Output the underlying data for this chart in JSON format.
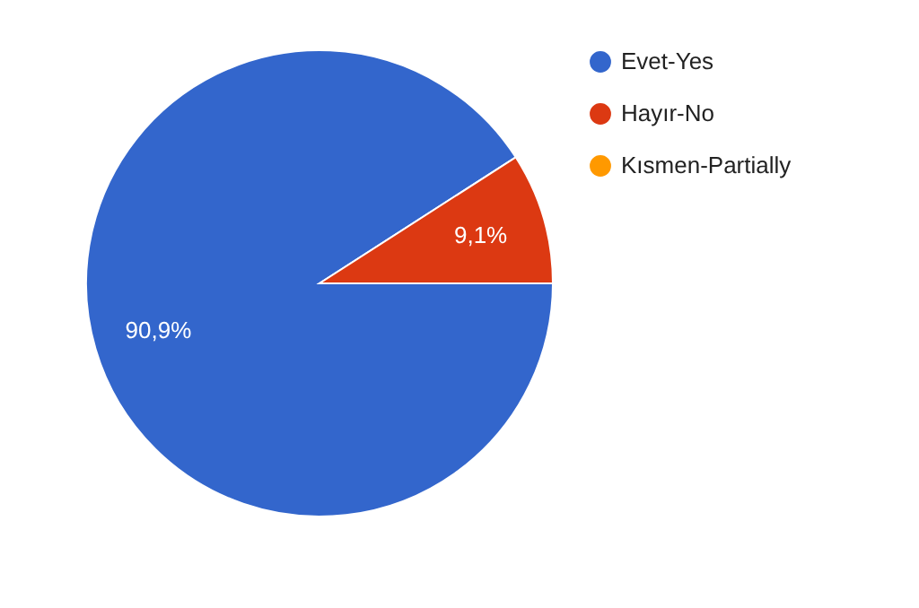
{
  "chart_data": {
    "type": "pie",
    "categories": [
      "Evet-Yes",
      "Hayır-No",
      "Kısmen-Partially"
    ],
    "values": [
      90.9,
      9.1,
      0
    ],
    "colors": [
      "#3366cc",
      "#dc3912",
      "#ff9900"
    ],
    "value_labels": [
      "90,9%",
      "9,1%",
      null
    ],
    "legend": "top right"
  }
}
